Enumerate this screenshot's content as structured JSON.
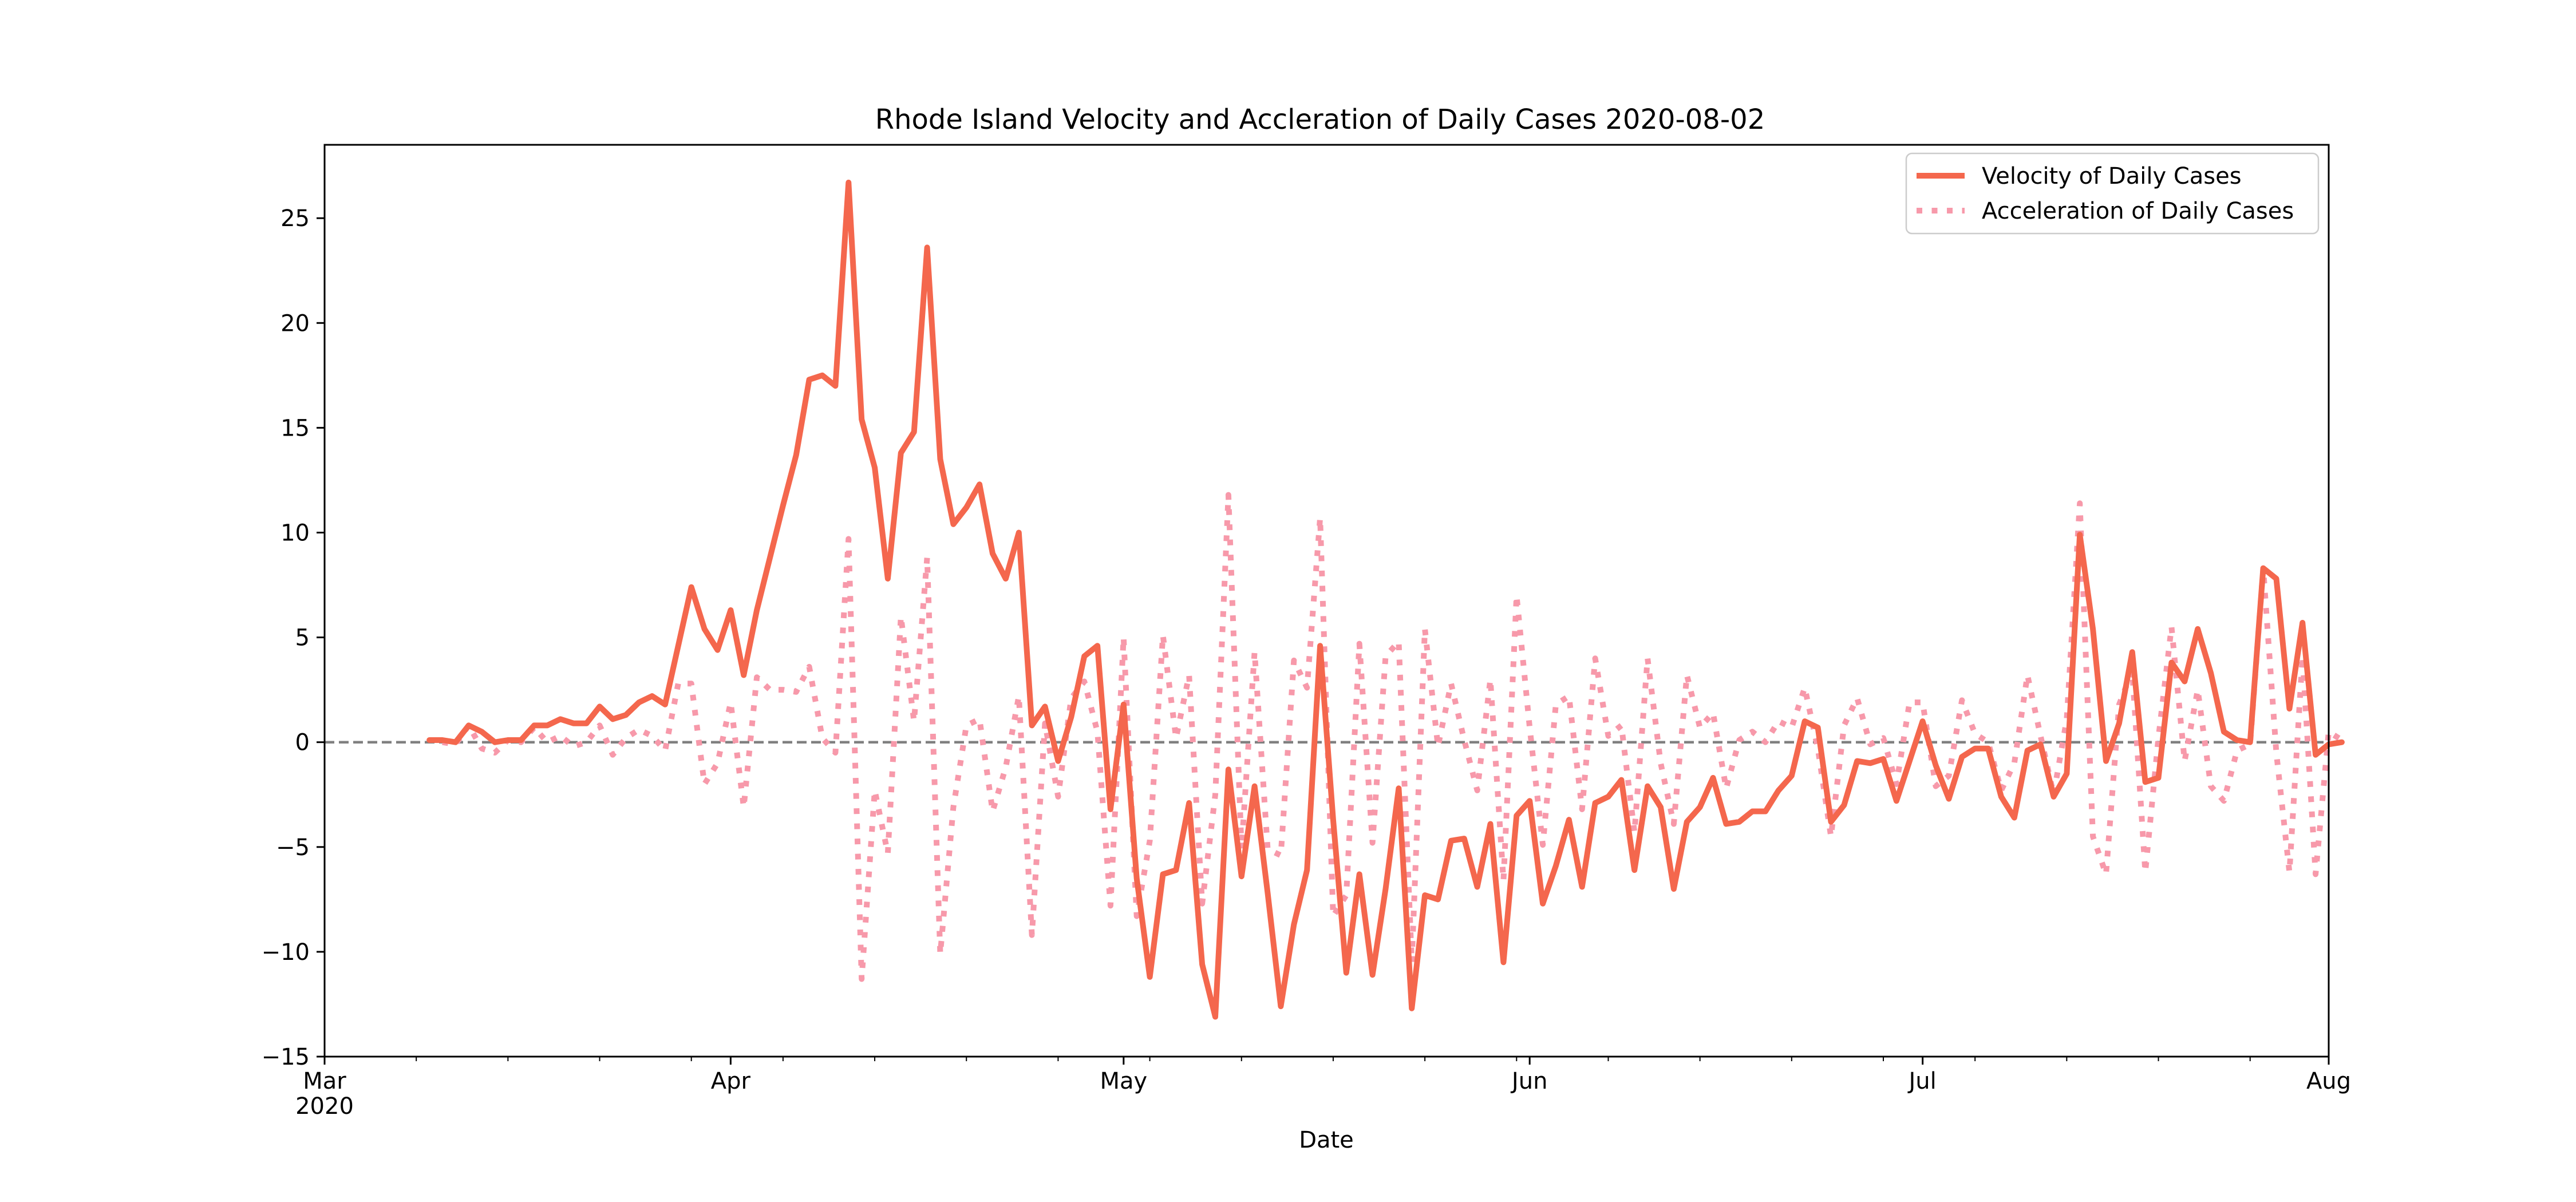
{
  "chart_data": {
    "type": "line",
    "title": "Rhode Island Velocity and Accleration of Daily Cases 2020-08-02",
    "xlabel": "Date",
    "ylabel": "",
    "xlim": [
      "2020-03-01",
      "2020-08-01"
    ],
    "ylim": [
      -15,
      28.5
    ],
    "grid": false,
    "legend_position": "upper right",
    "reference_line": {
      "y": 0,
      "style": "dashed",
      "color": "#808080"
    },
    "x_ticks": [
      {
        "date": "2020-03-01",
        "label": "Mar",
        "sublabel": "2020"
      },
      {
        "date": "2020-04-01",
        "label": "Apr",
        "sublabel": ""
      },
      {
        "date": "2020-05-01",
        "label": "May",
        "sublabel": ""
      },
      {
        "date": "2020-06-01",
        "label": "Jun",
        "sublabel": ""
      },
      {
        "date": "2020-07-01",
        "label": "Jul",
        "sublabel": ""
      },
      {
        "date": "2020-08-01",
        "label": "Aug",
        "sublabel": ""
      }
    ],
    "y_ticks": [
      -15,
      -10,
      -5,
      0,
      5,
      10,
      15,
      20,
      25
    ],
    "series": [
      {
        "name": "Velocity of Daily Cases",
        "color": "#f4674d",
        "style": "solid",
        "x_start": "2020-03-09",
        "values": [
          0.1,
          0.1,
          0.0,
          0.8,
          0.5,
          0.0,
          0.1,
          0.1,
          0.8,
          0.8,
          1.1,
          0.9,
          0.9,
          1.7,
          1.1,
          1.3,
          1.9,
          2.2,
          1.8,
          4.6,
          7.4,
          5.4,
          4.4,
          6.3,
          3.2,
          6.3,
          8.8,
          11.3,
          13.7,
          17.3,
          17.5,
          17.0,
          26.7,
          15.4,
          13.1,
          7.8,
          13.8,
          14.8,
          23.6,
          13.5,
          10.4,
          11.2,
          12.3,
          9.0,
          7.8,
          10.0,
          0.8,
          1.7,
          -0.9,
          1.2,
          4.1,
          4.6,
          -3.2,
          1.8,
          -6.5,
          -11.2,
          -6.3,
          -6.1,
          -2.9,
          -10.6,
          -13.1,
          -1.3,
          -6.4,
          -2.1,
          -7.2,
          -12.6,
          -8.7,
          -6.1,
          4.6,
          -3.7,
          -11.0,
          -6.3,
          -11.1,
          -7.0,
          -2.2,
          -12.7,
          -7.3,
          -7.5,
          -4.7,
          -4.6,
          -6.9,
          -3.9,
          -10.5,
          -3.5,
          -2.8,
          -7.7,
          -5.9,
          -3.7,
          -6.9,
          -2.9,
          -2.6,
          -1.8,
          -6.1,
          -2.1,
          -3.1,
          -7.0,
          -3.8,
          -3.1,
          -1.7,
          -3.9,
          -3.8,
          -3.3,
          -3.3,
          -2.3,
          -1.6,
          1.0,
          0.7,
          -3.8,
          -3.0,
          -0.9,
          -1.0,
          -0.8,
          -2.8,
          -0.9,
          1.0,
          -1.1,
          -2.7,
          -0.7,
          -0.3,
          -0.3,
          -2.6,
          -3.6,
          -0.4,
          -0.1,
          -2.6,
          -1.5,
          9.9,
          5.4,
          -0.9,
          0.9,
          4.3,
          -1.9,
          -1.7,
          3.8,
          2.9,
          5.4,
          3.3,
          0.5,
          0.1,
          0.0,
          8.3,
          7.8,
          1.6,
          5.7,
          -0.6,
          -0.1,
          0.0
        ]
      },
      {
        "name": "Acceleration of Daily Cases",
        "color": "#f799aa",
        "style": "dotted",
        "x_start": "2020-03-10",
        "values": [
          0.0,
          -0.1,
          0.8,
          -0.3,
          -0.5,
          0.1,
          0.0,
          0.7,
          0.0,
          0.3,
          -0.2,
          0.0,
          0.8,
          -0.6,
          0.2,
          0.6,
          0.3,
          -0.4,
          2.8,
          2.8,
          -2.0,
          -1.0,
          1.9,
          -3.1,
          3.1,
          2.5,
          2.5,
          2.4,
          3.6,
          0.2,
          -0.5,
          9.7,
          -11.3,
          -2.3,
          -5.3,
          6.0,
          1.0,
          8.8,
          -10.1,
          -3.1,
          0.8,
          1.1,
          -3.3,
          -1.2,
          2.2,
          -9.2,
          0.9,
          -2.6,
          2.1,
          2.9,
          0.5,
          -7.8,
          5.0,
          -8.3,
          -4.7,
          5.1,
          0.2,
          3.2,
          -7.7,
          -2.5,
          11.8,
          -5.1,
          4.3,
          -5.1,
          -5.4,
          3.9,
          2.6,
          10.7,
          -8.3,
          -7.3,
          4.7,
          -4.8,
          4.1,
          4.8,
          -10.5,
          5.4,
          -0.2,
          2.8,
          0.1,
          -2.3,
          3.0,
          -6.6,
          7.0,
          0.7,
          -4.9,
          1.8,
          2.2,
          -3.2,
          4.0,
          0.3,
          0.8,
          -4.3,
          4.0,
          -1.0,
          -3.9,
          3.2,
          0.7,
          1.4,
          -2.2,
          0.1,
          0.5,
          0.0,
          1.0,
          0.7,
          2.6,
          -0.3,
          -4.5,
          0.8,
          2.1,
          -0.1,
          0.2,
          -2.0,
          1.9,
          1.9,
          -2.1,
          -1.6,
          2.0,
          0.4,
          0.0,
          -2.3,
          -1.0,
          3.2,
          0.3,
          -2.5,
          1.1,
          11.4,
          -4.5,
          -6.3,
          1.8,
          3.4,
          -6.2,
          0.2,
          5.5,
          -0.9,
          2.5,
          -2.1,
          -2.8,
          -0.4,
          -0.1,
          8.3,
          -0.5,
          -6.2,
          4.1,
          -6.3,
          0.5,
          0.1
        ]
      }
    ]
  }
}
